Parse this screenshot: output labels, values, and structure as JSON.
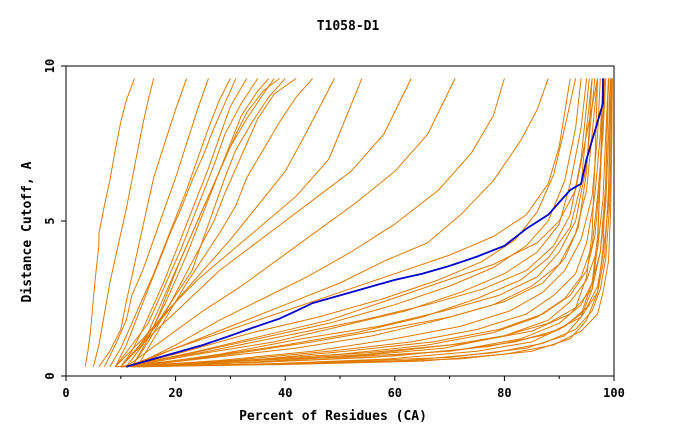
{
  "chart_data": {
    "type": "line",
    "title": "T1058-D1",
    "xlabel": "Percent of Residues (CA)",
    "ylabel": "Distance Cutoff, A",
    "xlim": [
      0,
      100
    ],
    "ylim": [
      0,
      10
    ],
    "x_ticks": [
      "0",
      "20",
      "40",
      "60",
      "80",
      "100"
    ],
    "y_ticks": [
      "0",
      "5",
      "10"
    ],
    "grid": false,
    "legend": "none",
    "colors": {
      "background_models": "#e07b00",
      "highlighted_model": "#0000cc",
      "axes": "#000000"
    },
    "highlighted_series": {
      "x": [
        11,
        16,
        20,
        25,
        30,
        34,
        39,
        42,
        45,
        50,
        55,
        60,
        65,
        70,
        75,
        80,
        84,
        88,
        90,
        92,
        94,
        95,
        96,
        97,
        98,
        98,
        98
      ],
      "y": [
        0.3,
        0.55,
        0.75,
        1.0,
        1.3,
        1.55,
        1.85,
        2.1,
        2.35,
        2.6,
        2.85,
        3.1,
        3.3,
        3.55,
        3.85,
        4.2,
        4.75,
        5.2,
        5.6,
        6.0,
        6.2,
        7.0,
        7.6,
        8.2,
        8.8,
        9.4,
        9.6
      ]
    },
    "series": [
      {
        "x": [
          3.5,
          4,
          4.5,
          5,
          5.5,
          6,
          6,
          7,
          8,
          9,
          10,
          11,
          12.5
        ],
        "y": [
          0.3,
          0.8,
          1.5,
          2.5,
          3.4,
          4.2,
          4.6,
          5.5,
          6.3,
          7.3,
          8.2,
          8.9,
          9.6
        ]
      },
      {
        "x": [
          5,
          6,
          7,
          8,
          9,
          10,
          11,
          12,
          13,
          14,
          15,
          16
        ],
        "y": [
          0.3,
          1,
          2,
          3,
          3.8,
          4.6,
          5.4,
          6.3,
          7.2,
          8.1,
          8.9,
          9.6
        ]
      },
      {
        "x": [
          6,
          8,
          10,
          11,
          12,
          13,
          14,
          15,
          16,
          18,
          20,
          22
        ],
        "y": [
          0.3,
          0.8,
          1.5,
          2.4,
          3.2,
          4,
          4.8,
          5.6,
          6.4,
          7.5,
          8.6,
          9.6
        ]
      },
      {
        "x": [
          7,
          9,
          11,
          12,
          14,
          16,
          18,
          20,
          22,
          24,
          26
        ],
        "y": [
          0.3,
          1,
          1.8,
          2.6,
          3.4,
          4.4,
          5.4,
          6.4,
          7.5,
          8.6,
          9.6
        ]
      },
      {
        "x": [
          8,
          10,
          12,
          14,
          16,
          18,
          20,
          22,
          24,
          26,
          28,
          30
        ],
        "y": [
          0.3,
          0.9,
          1.7,
          2.5,
          3.3,
          4.2,
          5.1,
          6,
          7,
          8,
          8.9,
          9.6
        ]
      },
      {
        "x": [
          9,
          11,
          13,
          15,
          17,
          19,
          21,
          23,
          25,
          27,
          29,
          31
        ],
        "y": [
          0.3,
          1,
          1.9,
          2.8,
          3.7,
          4.6,
          5.4,
          6.3,
          7.1,
          8,
          8.8,
          9.6
        ]
      },
      {
        "x": [
          10,
          12,
          14,
          16,
          18,
          20,
          22,
          24,
          26,
          28,
          30,
          33
        ],
        "y": [
          0.3,
          0.8,
          1.5,
          2.3,
          3.1,
          4,
          4.9,
          5.8,
          6.7,
          7.7,
          8.7,
          9.6
        ]
      },
      {
        "x": [
          9,
          12,
          15,
          17,
          19,
          21,
          23,
          25,
          27,
          29,
          32,
          35
        ],
        "y": [
          0.3,
          1,
          1.7,
          2.5,
          3.3,
          4.1,
          5,
          5.9,
          6.8,
          7.8,
          8.8,
          9.6
        ]
      },
      {
        "x": [
          10,
          13,
          16,
          18,
          20,
          22,
          24,
          26,
          28,
          30,
          32,
          35,
          37
        ],
        "y": [
          0.3,
          0.9,
          1.6,
          2.3,
          3.1,
          3.9,
          4.8,
          5.7,
          6.6,
          7.5,
          8.4,
          9.2,
          9.6
        ]
      },
      {
        "x": [
          11,
          14,
          16,
          18,
          20,
          22,
          24,
          26,
          28,
          30,
          33,
          36,
          38
        ],
        "y": [
          0.3,
          1,
          1.8,
          2.6,
          3.4,
          4.2,
          5,
          5.8,
          6.6,
          7.4,
          8.3,
          9.1,
          9.6
        ]
      },
      {
        "x": [
          12,
          15,
          17,
          19,
          21,
          23,
          25,
          27,
          29,
          31,
          33,
          36,
          39
        ],
        "y": [
          0.3,
          1.2,
          2,
          2.9,
          3.8,
          4.6,
          5.4,
          6.2,
          7,
          7.8,
          8.5,
          9.2,
          9.6
        ]
      },
      {
        "x": [
          11,
          14,
          17,
          20,
          23,
          25,
          27,
          29,
          31,
          34,
          37,
          40
        ],
        "y": [
          0.3,
          1,
          1.8,
          2.6,
          3.4,
          4.4,
          5.4,
          6.4,
          7.3,
          8.2,
          9,
          9.6
        ]
      },
      {
        "x": [
          12,
          15,
          18,
          21,
          24,
          27,
          29,
          31,
          33,
          35,
          38,
          42
        ],
        "y": [
          0.3,
          1.1,
          2,
          3,
          4,
          5,
          5.9,
          6.7,
          7.5,
          8.3,
          9.1,
          9.6
        ]
      },
      {
        "x": [
          13,
          16,
          19,
          22,
          25,
          28,
          31,
          33,
          36,
          39,
          42,
          45
        ],
        "y": [
          0.3,
          1.2,
          2.1,
          3,
          3.8,
          4.6,
          5.5,
          6.4,
          7.3,
          8.2,
          9,
          9.6
        ]
      },
      {
        "x": [
          10,
          15,
          20,
          25,
          30,
          35,
          40,
          44,
          49
        ],
        "y": [
          0.3,
          1.3,
          2.4,
          3.4,
          4.4,
          5.5,
          6.6,
          7.9,
          9.6
        ]
      },
      {
        "x": [
          9,
          14,
          19,
          24,
          30,
          36,
          42,
          48,
          54
        ],
        "y": [
          0.3,
          1.2,
          2.2,
          3.1,
          4,
          4.9,
          5.8,
          7,
          9.6
        ]
      },
      {
        "x": [
          10,
          16,
          22,
          28,
          34,
          40,
          46,
          52,
          58,
          63
        ],
        "y": [
          0.3,
          1.4,
          2.4,
          3.4,
          4.2,
          5,
          5.8,
          6.6,
          7.8,
          9.6
        ]
      },
      {
        "x": [
          11,
          18,
          25,
          32,
          39,
          46,
          53,
          60,
          66,
          71
        ],
        "y": [
          0.3,
          1.2,
          2.1,
          2.9,
          3.8,
          4.7,
          5.6,
          6.6,
          7.8,
          9.6
        ]
      },
      {
        "x": [
          12,
          20,
          28,
          36,
          44,
          52,
          60,
          68,
          74,
          78,
          80
        ],
        "y": [
          0.3,
          1,
          1.8,
          2.5,
          3.2,
          4,
          4.9,
          6,
          7.2,
          8.4,
          9.6
        ]
      },
      {
        "x": [
          12,
          20,
          30,
          40,
          50,
          58,
          66,
          72,
          78,
          83,
          86,
          88
        ],
        "y": [
          0.3,
          0.9,
          1.6,
          2.3,
          3,
          3.7,
          4.3,
          5.2,
          6.3,
          7.6,
          8.6,
          9.6
        ]
      },
      {
        "x": [
          11,
          20,
          30,
          40,
          50,
          60,
          70,
          78,
          84,
          88,
          90,
          91,
          92
        ],
        "y": [
          0.3,
          0.9,
          1.5,
          2.1,
          2.7,
          3.3,
          3.9,
          4.5,
          5.2,
          6.2,
          7.4,
          8.5,
          9.6
        ]
      },
      {
        "x": [
          11,
          22,
          34,
          46,
          58,
          68,
          76,
          82,
          86,
          89,
          91,
          93
        ],
        "y": [
          0.3,
          0.8,
          1.4,
          1.9,
          2.5,
          3.1,
          3.7,
          4.4,
          5.3,
          6.5,
          8,
          9.6
        ]
      },
      {
        "x": [
          10,
          22,
          35,
          48,
          60,
          70,
          78,
          84,
          88,
          91,
          93,
          94
        ],
        "y": [
          0.3,
          0.7,
          1.2,
          1.7,
          2.3,
          2.9,
          3.5,
          4.2,
          5,
          6.3,
          8,
          9.6
        ]
      },
      {
        "x": [
          11,
          24,
          38,
          50,
          62,
          72,
          80,
          86,
          90,
          92,
          94,
          95
        ],
        "y": [
          0.3,
          0.7,
          1.1,
          1.6,
          2.1,
          2.7,
          3.3,
          4,
          4.9,
          6.2,
          8,
          9.6
        ]
      },
      {
        "x": [
          10,
          25,
          40,
          53,
          65,
          75,
          83,
          88,
          92,
          94,
          95,
          96
        ],
        "y": [
          0.3,
          0.6,
          1,
          1.4,
          1.9,
          2.5,
          3.1,
          3.8,
          4.8,
          6.2,
          8,
          9.6
        ]
      },
      {
        "x": [
          12,
          27,
          42,
          56,
          68,
          78,
          85,
          90,
          93,
          95,
          96,
          97
        ],
        "y": [
          0.3,
          0.6,
          0.9,
          1.3,
          1.8,
          2.3,
          2.9,
          3.6,
          4.6,
          6,
          7.8,
          9.6
        ]
      },
      {
        "x": [
          11,
          28,
          45,
          60,
          72,
          81,
          87,
          91,
          94,
          96,
          97,
          97.5
        ],
        "y": [
          0.3,
          0.5,
          0.8,
          1.2,
          1.6,
          2.1,
          2.7,
          3.4,
          4.4,
          5.8,
          7.8,
          9.6
        ]
      },
      {
        "x": [
          10,
          30,
          48,
          63,
          75,
          84,
          89,
          93,
          95,
          96.5,
          97.5,
          98
        ],
        "y": [
          0.3,
          0.5,
          0.8,
          1.1,
          1.5,
          2,
          2.6,
          3.3,
          4.3,
          5.8,
          7.8,
          9.6
        ]
      },
      {
        "x": [
          12,
          32,
          50,
          66,
          78,
          86,
          91,
          94,
          96,
          97,
          98,
          98.5
        ],
        "y": [
          0.3,
          0.5,
          0.7,
          1,
          1.4,
          1.9,
          2.5,
          3.2,
          4.2,
          5.8,
          7.8,
          9.6
        ]
      },
      {
        "x": [
          11,
          34,
          53,
          69,
          80,
          88,
          92,
          95,
          97,
          98,
          98.5,
          99
        ],
        "y": [
          0.3,
          0.45,
          0.65,
          0.9,
          1.3,
          1.8,
          2.4,
          3.1,
          4.1,
          5.7,
          7.8,
          9.6
        ]
      },
      {
        "x": [
          10,
          36,
          56,
          72,
          83,
          90,
          94,
          96,
          97.5,
          98.5,
          99,
          99.3
        ],
        "y": [
          0.3,
          0.45,
          0.6,
          0.85,
          1.2,
          1.7,
          2.3,
          3,
          4,
          5.6,
          7.7,
          9.6
        ]
      },
      {
        "x": [
          12,
          38,
          59,
          75,
          85,
          91,
          95,
          97,
          98,
          99,
          99.3,
          99.5
        ],
        "y": [
          0.3,
          0.4,
          0.55,
          0.8,
          1.1,
          1.6,
          2.2,
          2.9,
          3.9,
          5.5,
          7.7,
          9.6
        ]
      },
      {
        "x": [
          14,
          40,
          62,
          78,
          87,
          93,
          96,
          97.5,
          98.5,
          99.2,
          99.5,
          99.6
        ],
        "y": [
          0.3,
          0.4,
          0.5,
          0.75,
          1.05,
          1.5,
          2.1,
          2.8,
          3.8,
          5.5,
          7.7,
          9.6
        ]
      },
      {
        "x": [
          13,
          42,
          65,
          80,
          89,
          94,
          97,
          98,
          99,
          99.4,
          99.6,
          99.7
        ],
        "y": [
          0.3,
          0.38,
          0.48,
          0.7,
          1,
          1.45,
          2,
          2.7,
          3.7,
          5.4,
          7.6,
          9.6
        ]
      },
      {
        "x": [
          11,
          30,
          50,
          70,
          82,
          90,
          94,
          96,
          97,
          97.5,
          98
        ],
        "y": [
          0.3,
          0.5,
          0.6,
          0.8,
          1.1,
          1.5,
          2,
          3,
          4.5,
          6.5,
          9.6
        ]
      },
      {
        "x": [
          12,
          35,
          55,
          70,
          80,
          88,
          93,
          95,
          96,
          96.5,
          97
        ],
        "y": [
          0.3,
          0.5,
          0.7,
          1,
          1.3,
          1.7,
          2.2,
          3.2,
          4.6,
          6.8,
          9.6
        ]
      },
      {
        "x": [
          13,
          30,
          45,
          58,
          70,
          80,
          87,
          91,
          93.5,
          95,
          96
        ],
        "y": [
          0.3,
          0.7,
          1.1,
          1.5,
          1.9,
          2.4,
          3,
          3.8,
          4.8,
          6.6,
          9.6
        ]
      },
      {
        "x": [
          10,
          26,
          40,
          54,
          66,
          76,
          84,
          89,
          92,
          94,
          95.5
        ],
        "y": [
          0.3,
          0.8,
          1.3,
          1.8,
          2.3,
          2.8,
          3.4,
          4.2,
          5.2,
          7,
          9.6
        ]
      },
      {
        "x": [
          12,
          28,
          43,
          57,
          69,
          79,
          86,
          90,
          93,
          95,
          96.5
        ],
        "y": [
          0.3,
          0.7,
          1.2,
          1.6,
          2.1,
          2.6,
          3.2,
          4,
          5,
          6.8,
          9.6
        ]
      },
      {
        "x": [
          14,
          33,
          51,
          67,
          79,
          87,
          92,
          95,
          96.5,
          97.5,
          98.3
        ],
        "y": [
          0.3,
          0.5,
          0.8,
          1.1,
          1.5,
          2,
          2.6,
          3.4,
          4.5,
          6.4,
          9.6
        ]
      },
      {
        "x": [
          11,
          24,
          36,
          48,
          58,
          68,
          78,
          86,
          90,
          93,
          95,
          97
        ],
        "y": [
          0.3,
          0.8,
          1.3,
          1.8,
          2.4,
          3,
          3.6,
          4.3,
          5,
          6,
          7.8,
          9.6
        ]
      },
      {
        "x": [
          10,
          40,
          70,
          84,
          91,
          94,
          96,
          97,
          97.5,
          98
        ],
        "y": [
          0.3,
          0.4,
          0.6,
          0.9,
          1.3,
          1.9,
          2.8,
          4.2,
          6.5,
          9.6
        ]
      },
      {
        "x": [
          12,
          45,
          72,
          85,
          92,
          95,
          97,
          98,
          98.5,
          99
        ],
        "y": [
          0.3,
          0.4,
          0.55,
          0.8,
          1.2,
          1.8,
          2.7,
          4.1,
          6.4,
          9.6
        ]
      },
      {
        "x": [
          9,
          32,
          55,
          73,
          85,
          92,
          96,
          97.5,
          98.5,
          99
        ],
        "y": [
          0.3,
          0.5,
          0.75,
          1.05,
          1.45,
          2,
          2.8,
          4,
          6.2,
          9.6
        ]
      },
      {
        "x": [
          11,
          36,
          60,
          77,
          88,
          94,
          97,
          98.3,
          99,
          99.4
        ],
        "y": [
          0.3,
          0.45,
          0.65,
          0.95,
          1.35,
          1.9,
          2.7,
          3.9,
          6,
          9.6
        ]
      }
    ]
  }
}
